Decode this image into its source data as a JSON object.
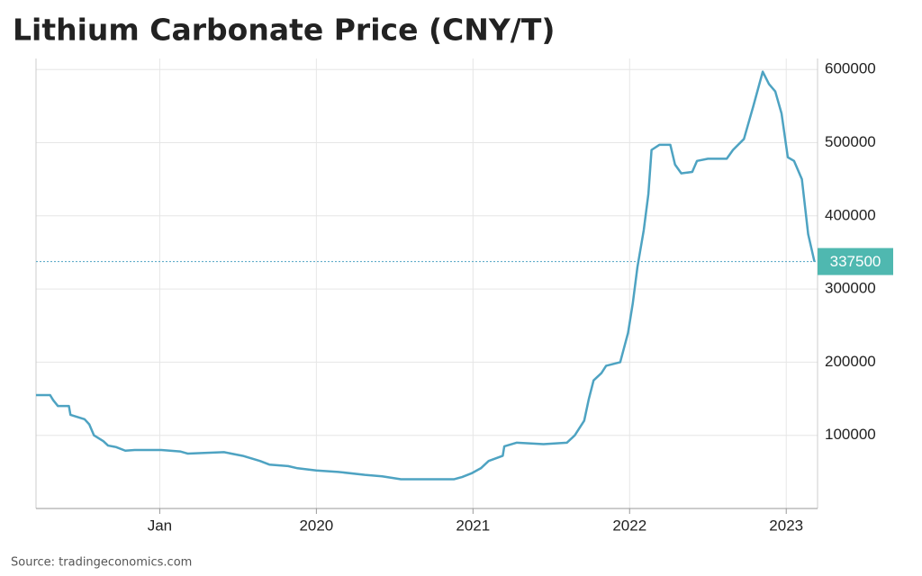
{
  "chart_data": {
    "type": "line",
    "title": "Lithium Carbonate Price (CNY/T)",
    "source": "Source: tradingeconomics.com",
    "xlim": [
      2018.21,
      2023.2
    ],
    "xticks": [
      {
        "value": 2019,
        "label": "Jan"
      },
      2020,
      2021,
      2022,
      2023
    ],
    "ylim": [
      0,
      615000
    ],
    "yticks": [
      100000,
      200000,
      300000,
      400000,
      500000,
      600000
    ],
    "grid": true,
    "series": [
      {
        "name": "Lithium Carbonate",
        "color": "#4ea3c2",
        "x": [
          2018.21,
          2018.3,
          2018.32,
          2018.35,
          2018.42,
          2018.43,
          2018.52,
          2018.55,
          2018.58,
          2018.64,
          2018.67,
          2018.72,
          2018.78,
          2018.84,
          2019.01,
          2019.13,
          2019.18,
          2019.41,
          2019.53,
          2019.64,
          2019.7,
          2019.82,
          2019.88,
          2020.0,
          2020.14,
          2020.31,
          2020.42,
          2020.54,
          2020.88,
          2020.93,
          2020.99,
          2021.05,
          2021.1,
          2021.19,
          2021.2,
          2021.28,
          2021.45,
          2021.6,
          2021.65,
          2021.71,
          2021.74,
          2021.77,
          2021.82,
          2021.85,
          2021.94,
          2021.99,
          2022.02,
          2022.05,
          2022.09,
          2022.12,
          2022.14,
          2022.19,
          2022.26,
          2022.29,
          2022.33,
          2022.4,
          2022.43,
          2022.5,
          2022.62,
          2022.66,
          2022.73,
          2022.79,
          2022.85,
          2022.89,
          2022.93,
          2022.97,
          2023.01,
          2023.05,
          2023.1,
          2023.14,
          2023.18
        ],
        "values": [
          155000,
          155000,
          148000,
          140000,
          140000,
          128000,
          122000,
          115000,
          100000,
          92000,
          86000,
          84000,
          79000,
          80000,
          80000,
          78000,
          75000,
          77000,
          72000,
          65000,
          60000,
          58000,
          55000,
          52000,
          50000,
          46000,
          44000,
          40000,
          40000,
          43000,
          48000,
          55000,
          65000,
          72000,
          85000,
          90000,
          88000,
          90000,
          100000,
          120000,
          150000,
          175000,
          185000,
          195000,
          200000,
          240000,
          280000,
          330000,
          380000,
          430000,
          490000,
          497000,
          497000,
          470000,
          458000,
          460000,
          475000,
          478000,
          478000,
          490000,
          505000,
          550000,
          597000,
          580000,
          570000,
          540000,
          480000,
          475000,
          450000,
          375000,
          337500
        ]
      }
    ]
  }
}
